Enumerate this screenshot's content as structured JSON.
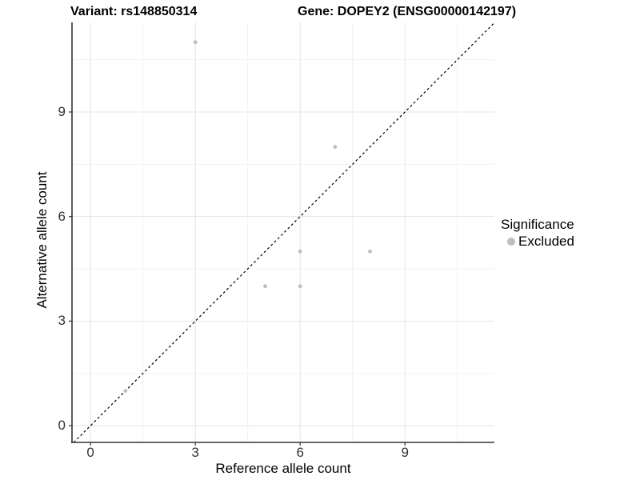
{
  "chart_data": {
    "type": "scatter",
    "title_left": "Variant: rs148850314",
    "title_right": "Gene: DOPEY2 (ENSG00000142197)",
    "xlabel": "Reference allele count",
    "ylabel": "Alternative allele count",
    "xlim": [
      -0.53,
      11.56
    ],
    "ylim": [
      -0.48,
      11.57
    ],
    "x_ticks": [
      0,
      3,
      6,
      9
    ],
    "y_ticks": [
      0,
      3,
      6,
      9
    ],
    "minor_x_ticks": [
      1.5,
      4.5,
      7.5,
      10.5
    ],
    "minor_y_ticks": [
      1.5,
      4.5,
      7.5,
      10.5
    ],
    "grid": true,
    "series": [
      {
        "name": "Excluded",
        "color": "#bebebe",
        "points": [
          [
            1,
            1
          ],
          [
            3,
            11
          ],
          [
            5,
            4
          ],
          [
            6,
            4
          ],
          [
            6,
            5
          ],
          [
            7,
            8
          ],
          [
            8,
            5
          ]
        ]
      }
    ],
    "identity_line": {
      "style": "dashed",
      "color": "#000000"
    },
    "legend": {
      "title": "Significance",
      "position": "right",
      "items": [
        {
          "label": "Excluded",
          "color": "#bebebe"
        }
      ]
    }
  }
}
